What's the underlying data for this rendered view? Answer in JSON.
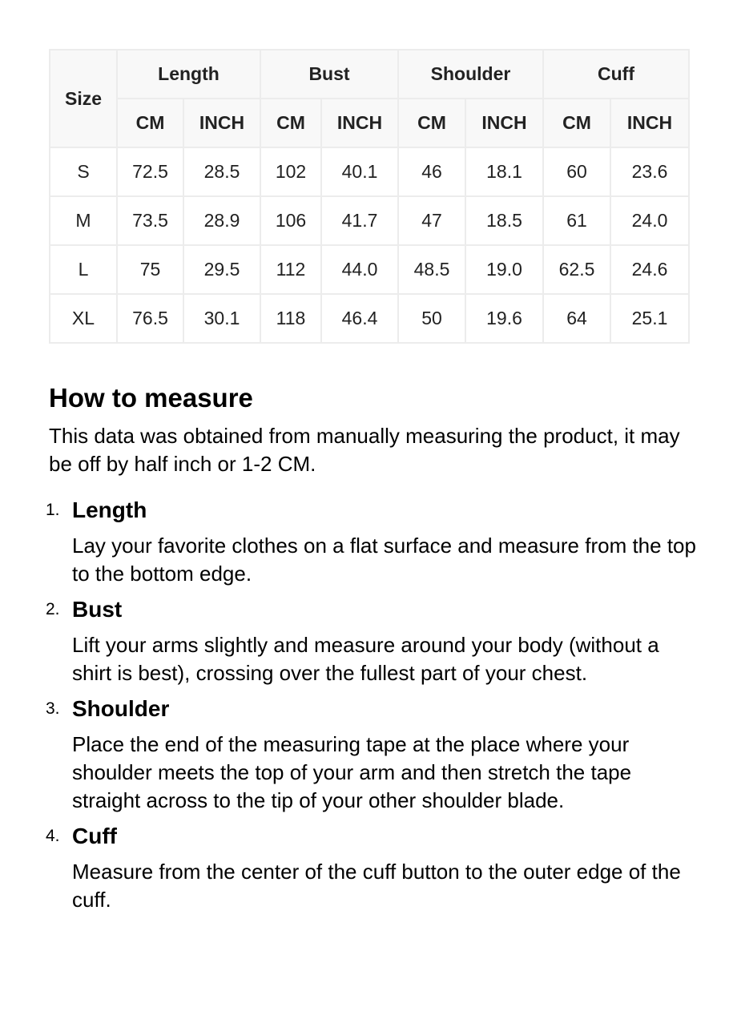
{
  "table": {
    "size_header": "Size",
    "groups": [
      "Length",
      "Bust",
      "Shoulder",
      "Cuff"
    ],
    "units": [
      "CM",
      "INCH"
    ],
    "rows": [
      [
        "S",
        "72.5",
        "28.5",
        "102",
        "40.1",
        "46",
        "18.1",
        "60",
        "23.6"
      ],
      [
        "M",
        "73.5",
        "28.9",
        "106",
        "41.7",
        "47",
        "18.5",
        "61",
        "24.0"
      ],
      [
        "L",
        "75",
        "29.5",
        "112",
        "44.0",
        "48.5",
        "19.0",
        "62.5",
        "24.6"
      ],
      [
        "XL",
        "76.5",
        "30.1",
        "118",
        "46.4",
        "50",
        "19.6",
        "64",
        "25.1"
      ]
    ]
  },
  "guide": {
    "heading": "How to measure",
    "intro": "This data was obtained from manually measuring the product, it may be off by half inch or 1-2 CM.",
    "items": [
      {
        "num": "1.",
        "title": "Length",
        "desc": "Lay your favorite clothes on a flat surface and measure from the top to the bottom edge."
      },
      {
        "num": "2.",
        "title": "Bust",
        "desc": "Lift your arms slightly and measure around your body (without a shirt is best), crossing over the fullest part of your chest."
      },
      {
        "num": "3.",
        "title": "Shoulder",
        "desc": "Place the end of the measuring tape at the place where your shoulder meets the top of your arm and then stretch the tape straight across to the tip of your other shoulder blade."
      },
      {
        "num": "4.",
        "title": "Cuff",
        "desc": "Measure from the center of the cuff button to the outer edge of the cuff."
      }
    ]
  }
}
